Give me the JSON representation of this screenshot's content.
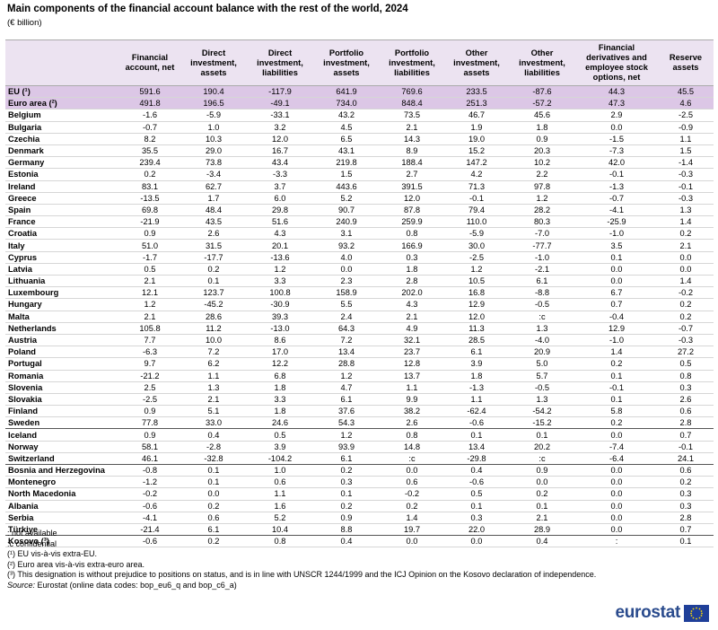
{
  "header": {
    "title": "Main components of the financial account balance with the rest of the world, 2024",
    "subtitle": "(€ billion)"
  },
  "table": {
    "columns": [
      "Financial account, net",
      "Direct investment, assets",
      "Direct investment, liabilities",
      "Portfolio investment, assets",
      "Portfolio investment, liabilities",
      "Other investment, assets",
      "Other investment, liabilities",
      "Financial derivatives and employee stock options, net",
      "Reserve assets"
    ],
    "groups": [
      {
        "rows": [
          {
            "label": "EU (¹)",
            "cells": [
              "591.6",
              "190.4",
              "-117.9",
              "641.9",
              "769.6",
              "233.5",
              "-87.6",
              "44.3",
              "45.5"
            ]
          },
          {
            "label": "Euro area (²)",
            "cells": [
              "491.8",
              "196.5",
              "-49.1",
              "734.0",
              "848.4",
              "251.3",
              "-57.2",
              "47.3",
              "4.6"
            ]
          }
        ]
      },
      {
        "rows": [
          {
            "label": "Belgium",
            "cells": [
              "-1.6",
              "-5.9",
              "-33.1",
              "43.2",
              "73.5",
              "46.7",
              "45.6",
              "2.9",
              "-2.5"
            ]
          },
          {
            "label": "Bulgaria",
            "cells": [
              "-0.7",
              "1.0",
              "3.2",
              "4.5",
              "2.1",
              "1.9",
              "1.8",
              "0.0",
              "-0.9"
            ]
          },
          {
            "label": "Czechia",
            "cells": [
              "8.2",
              "10.3",
              "12.0",
              "6.5",
              "14.3",
              "19.0",
              "0.9",
              "-1.5",
              "1.1"
            ]
          },
          {
            "label": "Denmark",
            "cells": [
              "35.5",
              "29.0",
              "16.7",
              "43.1",
              "8.9",
              "15.2",
              "20.3",
              "-7.3",
              "1.5"
            ]
          },
          {
            "label": "Germany",
            "cells": [
              "239.4",
              "73.8",
              "43.4",
              "219.8",
              "188.4",
              "147.2",
              "10.2",
              "42.0",
              "-1.4"
            ]
          },
          {
            "label": "Estonia",
            "cells": [
              "0.2",
              "-3.4",
              "-3.3",
              "1.5",
              "2.7",
              "4.2",
              "2.2",
              "-0.1",
              "-0.3"
            ]
          },
          {
            "label": "Ireland",
            "cells": [
              "83.1",
              "62.7",
              "3.7",
              "443.6",
              "391.5",
              "71.3",
              "97.8",
              "-1.3",
              "-0.1"
            ]
          },
          {
            "label": "Greece",
            "cells": [
              "-13.5",
              "1.7",
              "6.0",
              "5.2",
              "12.0",
              "-0.1",
              "1.2",
              "-0.7",
              "-0.3"
            ]
          },
          {
            "label": "Spain",
            "cells": [
              "69.8",
              "48.4",
              "29.8",
              "90.7",
              "87.8",
              "79.4",
              "28.2",
              "-4.1",
              "1.3"
            ]
          },
          {
            "label": "France",
            "cells": [
              "-21.9",
              "43.5",
              "51.6",
              "240.9",
              "259.9",
              "110.0",
              "80.3",
              "-25.9",
              "1.4"
            ]
          },
          {
            "label": "Croatia",
            "cells": [
              "0.9",
              "2.6",
              "4.3",
              "3.1",
              "0.8",
              "-5.9",
              "-7.0",
              "-1.0",
              "0.2"
            ]
          },
          {
            "label": "Italy",
            "cells": [
              "51.0",
              "31.5",
              "20.1",
              "93.2",
              "166.9",
              "30.0",
              "-77.7",
              "3.5",
              "2.1"
            ]
          },
          {
            "label": "Cyprus",
            "cells": [
              "-1.7",
              "-17.7",
              "-13.6",
              "4.0",
              "0.3",
              "-2.5",
              "-1.0",
              "0.1",
              "0.0"
            ]
          },
          {
            "label": "Latvia",
            "cells": [
              "0.5",
              "0.2",
              "1.2",
              "0.0",
              "1.8",
              "1.2",
              "-2.1",
              "0.0",
              "0.0"
            ]
          },
          {
            "label": "Lithuania",
            "cells": [
              "2.1",
              "0.1",
              "3.3",
              "2.3",
              "2.8",
              "10.5",
              "6.1",
              "0.0",
              "1.4"
            ]
          },
          {
            "label": "Luxembourg",
            "cells": [
              "12.1",
              "123.7",
              "100.8",
              "158.9",
              "202.0",
              "16.8",
              "-8.8",
              "6.7",
              "-0.2"
            ]
          },
          {
            "label": "Hungary",
            "cells": [
              "1.2",
              "-45.2",
              "-30.9",
              "5.5",
              "4.3",
              "12.9",
              "-0.5",
              "0.7",
              "0.2"
            ]
          },
          {
            "label": "Malta",
            "cells": [
              "2.1",
              "28.6",
              "39.3",
              "2.4",
              "2.1",
              "12.0",
              ":c",
              "-0.4",
              "0.2"
            ]
          },
          {
            "label": "Netherlands",
            "cells": [
              "105.8",
              "11.2",
              "-13.0",
              "64.3",
              "4.9",
              "11.3",
              "1.3",
              "12.9",
              "-0.7"
            ]
          },
          {
            "label": "Austria",
            "cells": [
              "7.7",
              "10.0",
              "8.6",
              "7.2",
              "32.1",
              "28.5",
              "-4.0",
              "-1.0",
              "-0.3"
            ]
          },
          {
            "label": "Poland",
            "cells": [
              "-6.3",
              "7.2",
              "17.0",
              "13.4",
              "23.7",
              "6.1",
              "20.9",
              "1.4",
              "27.2"
            ]
          },
          {
            "label": "Portugal",
            "cells": [
              "9.7",
              "6.2",
              "12.2",
              "28.8",
              "12.8",
              "3.9",
              "5.0",
              "0.2",
              "0.5"
            ]
          },
          {
            "label": "Romania",
            "cells": [
              "-21.2",
              "1.1",
              "6.8",
              "1.2",
              "13.7",
              "1.8",
              "5.7",
              "0.1",
              "0.8"
            ]
          },
          {
            "label": "Slovenia",
            "cells": [
              "2.5",
              "1.3",
              "1.8",
              "4.7",
              "1.1",
              "-1.3",
              "-0.5",
              "-0.1",
              "0.3"
            ]
          },
          {
            "label": "Slovakia",
            "cells": [
              "-2.5",
              "2.1",
              "3.3",
              "6.1",
              "9.9",
              "1.1",
              "1.3",
              "0.1",
              "2.6"
            ]
          },
          {
            "label": "Finland",
            "cells": [
              "0.9",
              "5.1",
              "1.8",
              "37.6",
              "38.2",
              "-62.4",
              "-54.2",
              "5.8",
              "0.6"
            ]
          },
          {
            "label": "Sweden",
            "cells": [
              "77.8",
              "33.0",
              "24.6",
              "54.3",
              "2.6",
              "-0.6",
              "-15.2",
              "0.2",
              "2.8"
            ]
          }
        ]
      },
      {
        "rows": [
          {
            "label": "Iceland",
            "cells": [
              "0.9",
              "0.4",
              "0.5",
              "1.2",
              "0.8",
              "0.1",
              "0.1",
              "0.0",
              "0.7"
            ]
          },
          {
            "label": "Norway",
            "cells": [
              "58.1",
              "-2.8",
              "3.9",
              "93.9",
              "14.8",
              "13.4",
              "20.2",
              "-7.4",
              "-0.1"
            ]
          },
          {
            "label": "Switzerland",
            "cells": [
              "46.1",
              "-32.8",
              "-104.2",
              "6.1",
              ":c",
              "-29.8",
              ":c",
              "-6.4",
              "24.1"
            ]
          }
        ]
      },
      {
        "rows": [
          {
            "label": "Bosnia and Herzegovina",
            "cells": [
              "-0.8",
              "0.1",
              "1.0",
              "0.2",
              "0.0",
              "0.4",
              "0.9",
              "0.0",
              "0.6"
            ]
          },
          {
            "label": "Montenegro",
            "cells": [
              "-1.2",
              "0.1",
              "0.6",
              "0.3",
              "0.6",
              "-0.6",
              "0.0",
              "0.0",
              "0.2"
            ]
          },
          {
            "label": "North Macedonia",
            "cells": [
              "-0.2",
              "0.0",
              "1.1",
              "0.1",
              "-0.2",
              "0.5",
              "0.2",
              "0.0",
              "0.3"
            ]
          },
          {
            "label": "Albania",
            "cells": [
              "-0.6",
              "0.2",
              "1.6",
              "0.2",
              "0.2",
              "0.1",
              "0.1",
              "0.0",
              "0.3"
            ]
          },
          {
            "label": "Serbia",
            "cells": [
              "-4.1",
              "0.6",
              "5.2",
              "0.9",
              "1.4",
              "0.3",
              "2.1",
              "0.0",
              "2.8"
            ]
          },
          {
            "label": "Türkiye",
            "cells": [
              "-21.4",
              "6.1",
              "10.4",
              "8.8",
              "19.7",
              "22.0",
              "28.9",
              "0.0",
              "0.7"
            ]
          }
        ]
      },
      {
        "rows": [
          {
            "label": "Kosovo (³)",
            "cells": [
              "-0.6",
              "0.2",
              "0.8",
              "0.4",
              "0.0",
              "0.0",
              "0.4",
              ":",
              "0.1"
            ]
          }
        ]
      }
    ]
  },
  "footnotes": [
    ": not available",
    ":c confidential",
    "(¹) EU vis-à-vis extra-EU.",
    "(²) Euro area vis-à-vis extra-euro area.",
    "(³) This designation is without prejudice to positions on status, and is in line with UNSCR 1244/1999 and the ICJ Opinion on the Kosovo declaration of independence."
  ],
  "source": {
    "label": "Source:",
    "text": "Eurostat (online data codes: bop_eu6_q and bop_c6_a)"
  },
  "logo": "eurostat"
}
